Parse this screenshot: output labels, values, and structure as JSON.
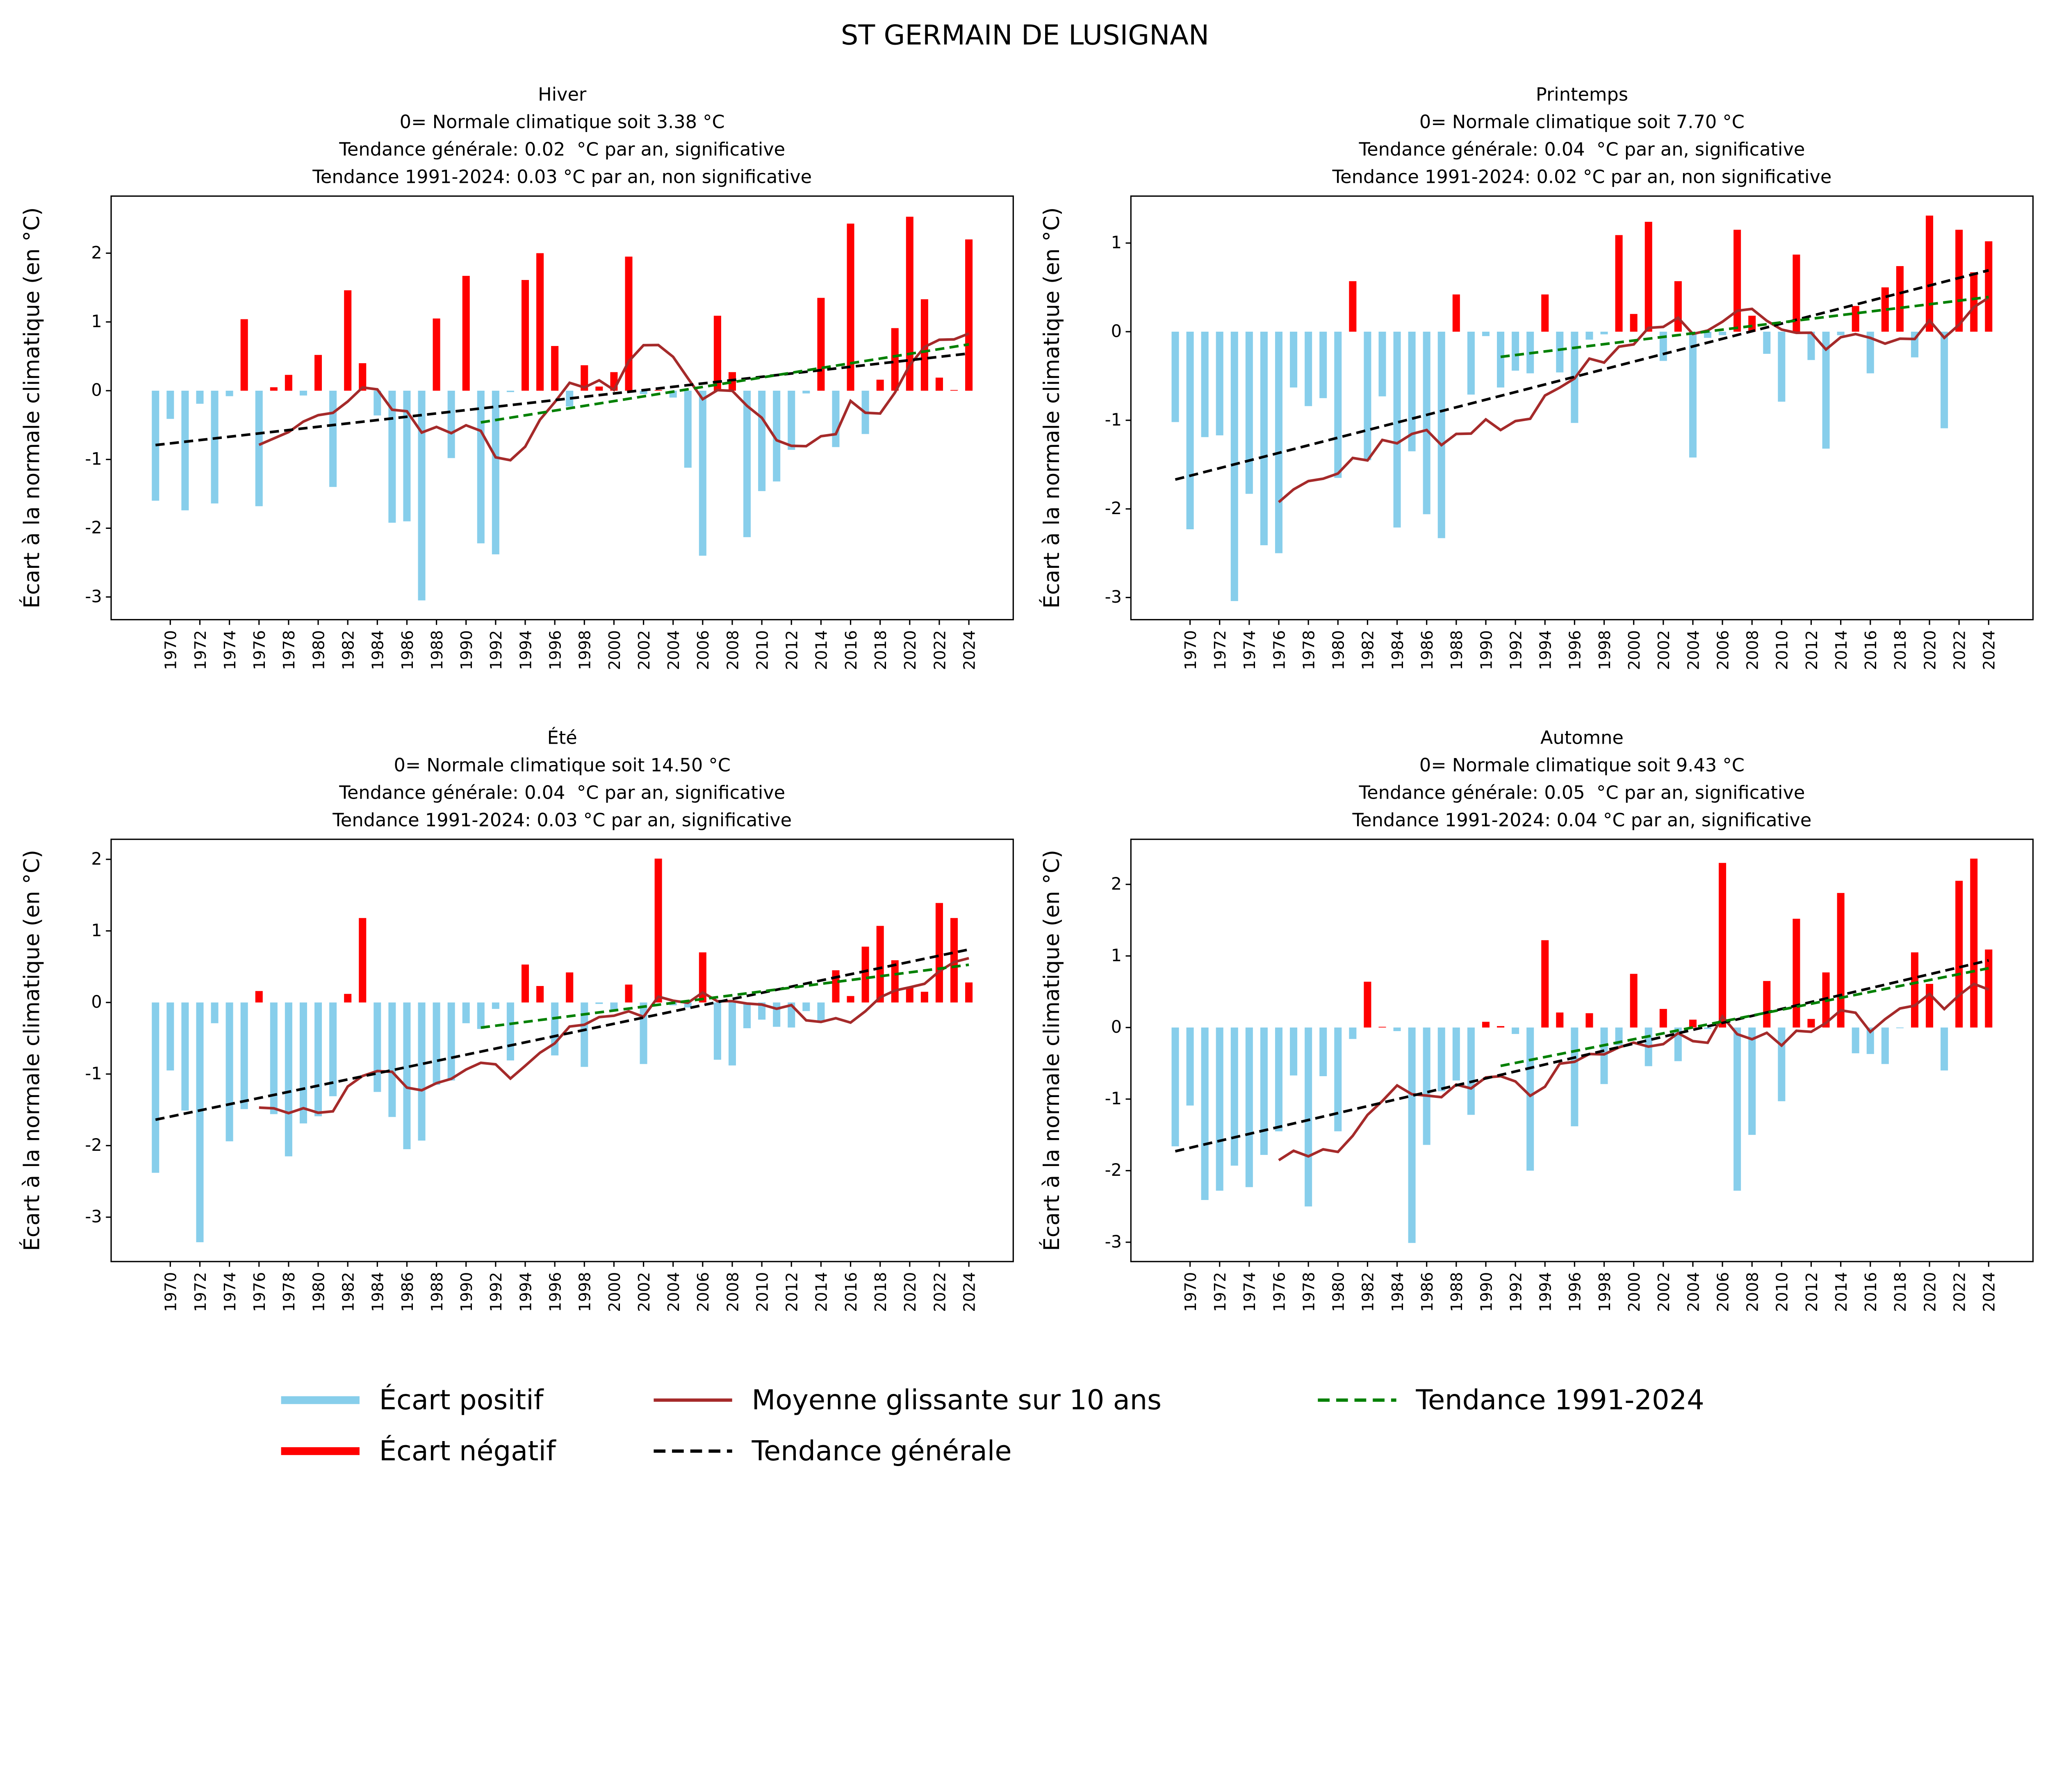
{
  "suptitle": "ST GERMAIN DE LUSIGNAN",
  "colors": {
    "positive_bar": "#FF0000",
    "negative_bar": "#87CEEB",
    "moving_average": "#A52A2A",
    "general_trend": "#000000",
    "recent_trend": "#008000"
  },
  "legend": {
    "placement": "bottom-center",
    "items": [
      {
        "label": "Écart positif",
        "color": "#87CEEB",
        "style": "thick-line"
      },
      {
        "label": "Écart négatif",
        "color": "#FF0000",
        "style": "thick-line"
      },
      {
        "label": "Moyenne glissante sur 10 ans",
        "color": "#A52A2A",
        "style": "line"
      },
      {
        "label": "Tendance générale",
        "color": "#000000",
        "style": "dashed"
      },
      {
        "label": "Tendance 1991-2024",
        "color": "#008000",
        "style": "dashed"
      }
    ]
  },
  "chart_data": [
    {
      "type": "bar",
      "title_lines": [
        "Hiver",
        "0= Normale climatique soit 3.38 °C",
        "Tendance générale: 0.02  °C par an, significative",
        "Tendance 1991-2024: 0.03 °C par an, non significative"
      ],
      "ylabel": "Écart à la normale climatique (en °C)",
      "xlim": [
        1966,
        2027
      ],
      "ylim": [
        -3.33,
        2.83
      ],
      "yticks": [
        "-3",
        "-2",
        "-1",
        "0",
        "1",
        "2"
      ],
      "xticks": [
        "1970",
        "1972",
        "1974",
        "1976",
        "1978",
        "1980",
        "1982",
        "1984",
        "1986",
        "1988",
        "1990",
        "1992",
        "1994",
        "1996",
        "1998",
        "2000",
        "2002",
        "2004",
        "2006",
        "2008",
        "2010",
        "2012",
        "2014",
        "2016",
        "2018",
        "2020",
        "2022",
        "2024"
      ],
      "x_start": 1969,
      "values": [
        -1.6,
        -0.41,
        -1.74,
        -0.19,
        -1.64,
        -0.08,
        1.04,
        -1.68,
        0.05,
        0.23,
        -0.07,
        0.52,
        -1.4,
        1.46,
        0.4,
        -0.36,
        -1.92,
        -1.9,
        -3.05,
        1.05,
        -0.98,
        1.67,
        -2.22,
        -2.38,
        -0.02,
        1.61,
        2.0,
        0.65,
        -0.23,
        0.37,
        0.06,
        0.27,
        1.95,
        -0.05,
        0.01,
        -0.1,
        -1.12,
        -2.4,
        1.09,
        0.27,
        -2.13,
        -1.46,
        -1.32,
        -0.86,
        -0.04,
        1.35,
        -0.82,
        2.43,
        -0.63,
        0.16,
        0.91,
        2.53,
        1.33,
        0.19,
        0.01,
        2.2
      ]
    },
    {
      "type": "bar",
      "title_lines": [
        "Printemps",
        "0= Normale climatique soit 7.70 °C",
        "Tendance générale: 0.04  °C par an, significative",
        "Tendance 1991-2024: 0.02 °C par an, non significative"
      ],
      "ylabel": "Écart à la normale climatique (en °C)",
      "xlim": [
        1966,
        2027
      ],
      "ylim": [
        -3.25,
        1.53
      ],
      "yticks": [
        "-3",
        "-2",
        "-1",
        "0",
        "1"
      ],
      "xticks": [
        "1970",
        "1972",
        "1974",
        "1976",
        "1978",
        "1980",
        "1982",
        "1984",
        "1986",
        "1988",
        "1990",
        "1992",
        "1994",
        "1996",
        "1998",
        "2000",
        "2002",
        "2004",
        "2006",
        "2008",
        "2010",
        "2012",
        "2014",
        "2016",
        "2018",
        "2020",
        "2022",
        "2024"
      ],
      "x_start": 1969,
      "values": [
        -1.02,
        -2.23,
        -1.19,
        -1.17,
        -3.04,
        -1.83,
        -2.41,
        -2.5,
        -0.63,
        -0.84,
        -0.75,
        -1.65,
        0.57,
        -1.45,
        -0.73,
        -2.21,
        -1.35,
        -2.06,
        -2.33,
        0.42,
        -0.71,
        -0.05,
        -0.63,
        -0.44,
        -0.47,
        0.42,
        -0.46,
        -1.03,
        -0.09,
        -0.03,
        1.09,
        0.2,
        1.24,
        -0.33,
        0.57,
        -1.42,
        -0.07,
        -0.04,
        1.15,
        0.18,
        -0.25,
        -0.79,
        0.87,
        -0.32,
        -1.32,
        -0.04,
        0.29,
        -0.47,
        0.5,
        0.74,
        -0.29,
        1.31,
        -1.09,
        1.15,
        0.67,
        1.02
      ]
    },
    {
      "type": "bar",
      "title_lines": [
        "Été",
        "0= Normale climatique soit 14.50 °C",
        "Tendance générale: 0.04  °C par an, significative",
        "Tendance 1991-2024: 0.03 °C par an, significative"
      ],
      "ylabel": "Écart à la normale climatique (en °C)",
      "xlim": [
        1966,
        2027
      ],
      "ylim": [
        -3.62,
        2.28
      ],
      "yticks": [
        "-3",
        "-2",
        "-1",
        "0",
        "1",
        "2"
      ],
      "xticks": [
        "1970",
        "1972",
        "1974",
        "1976",
        "1978",
        "1980",
        "1982",
        "1984",
        "1986",
        "1988",
        "1990",
        "1992",
        "1994",
        "1996",
        "1998",
        "2000",
        "2002",
        "2004",
        "2006",
        "2008",
        "2010",
        "2012",
        "2014",
        "2016",
        "2018",
        "2020",
        "2022",
        "2024"
      ],
      "x_start": 1969,
      "values": [
        -2.38,
        -0.95,
        -1.51,
        -3.35,
        -0.29,
        -1.94,
        -1.49,
        0.16,
        -1.56,
        -2.15,
        -1.69,
        -1.59,
        -1.31,
        0.12,
        1.18,
        -1.25,
        -1.6,
        -2.05,
        -1.93,
        -1.15,
        -1.09,
        -0.29,
        -0.37,
        -0.09,
        -0.81,
        0.53,
        0.23,
        -0.74,
        0.42,
        -0.9,
        -0.02,
        -0.1,
        0.25,
        -0.86,
        2.01,
        -0.04,
        -0.07,
        0.7,
        -0.8,
        -0.88,
        -0.36,
        -0.24,
        -0.34,
        -0.35,
        -0.12,
        -0.26,
        0.45,
        0.09,
        0.78,
        1.07,
        0.59,
        0.21,
        0.15,
        1.39,
        1.18,
        0.28
      ]
    },
    {
      "type": "bar",
      "title_lines": [
        "Automne",
        "0= Normale climatique soit 9.43 °C",
        "Tendance générale: 0.05  °C par an, significative",
        "Tendance 1991-2024: 0.04 °C par an, significative"
      ],
      "ylabel": "Écart à la normale climatique (en °C)",
      "xlim": [
        1966,
        2027
      ],
      "ylim": [
        -3.27,
        2.63
      ],
      "yticks": [
        "-3",
        "-2",
        "-1",
        "0",
        "1",
        "2"
      ],
      "xticks": [
        "1970",
        "1972",
        "1974",
        "1976",
        "1978",
        "1980",
        "1982",
        "1984",
        "1986",
        "1988",
        "1990",
        "1992",
        "1994",
        "1996",
        "1998",
        "2000",
        "2002",
        "2004",
        "2006",
        "2008",
        "2010",
        "2012",
        "2014",
        "2016",
        "2018",
        "2020",
        "2022",
        "2024"
      ],
      "x_start": 1969,
      "values": [
        -1.66,
        -1.09,
        -2.41,
        -2.28,
        -1.93,
        -2.23,
        -1.78,
        -1.45,
        -0.67,
        -2.5,
        -0.68,
        -1.45,
        -0.16,
        0.64,
        0.01,
        -0.05,
        -3.01,
        -1.64,
        -0.89,
        -0.74,
        -1.22,
        0.08,
        0.02,
        -0.09,
        -2.0,
        1.22,
        0.21,
        -1.38,
        0.2,
        -0.79,
        -0.25,
        0.75,
        -0.54,
        0.26,
        -0.47,
        0.11,
        -0.02,
        2.3,
        -2.28,
        -1.5,
        0.65,
        -1.03,
        1.52,
        0.12,
        0.77,
        1.88,
        -0.36,
        -0.37,
        -0.51,
        -0.01,
        1.05,
        0.61,
        -0.6,
        2.05,
        2.36,
        1.09
      ]
    }
  ]
}
